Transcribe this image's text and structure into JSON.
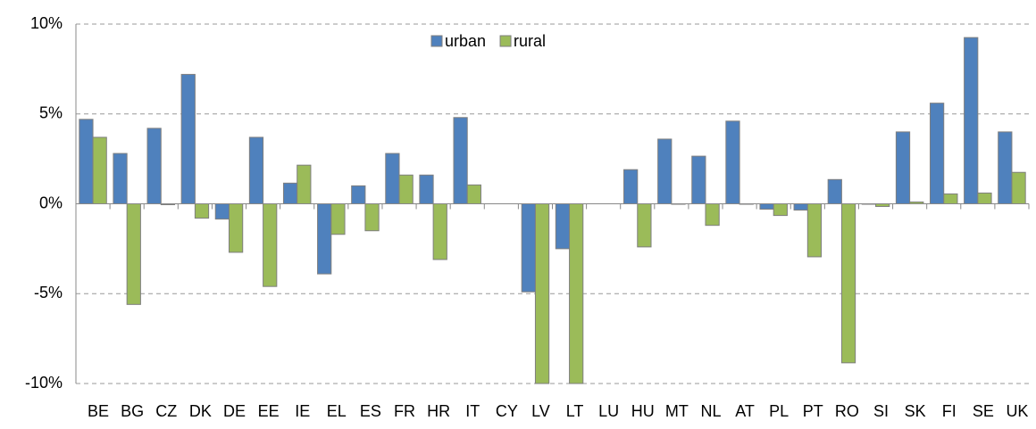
{
  "chart_data": {
    "type": "bar",
    "categories": [
      "BE",
      "BG",
      "CZ",
      "DK",
      "DE",
      "EE",
      "IE",
      "EL",
      "ES",
      "FR",
      "HR",
      "IT",
      "CY",
      "LV",
      "LT",
      "LU",
      "HU",
      "MT",
      "NL",
      "AT",
      "PL",
      "PT",
      "RO",
      "SI",
      "SK",
      "FI",
      "SE",
      "UK"
    ],
    "series": [
      {
        "name": "urban",
        "color": "#4f81bd",
        "values": [
          4.7,
          2.8,
          4.2,
          7.2,
          -0.85,
          3.7,
          1.15,
          -3.9,
          1.0,
          2.8,
          1.6,
          4.8,
          null,
          -4.9,
          -2.5,
          null,
          1.9,
          3.6,
          2.65,
          4.6,
          -0.3,
          -0.35,
          1.35,
          0,
          4.0,
          5.6,
          9.25,
          4.0
        ]
      },
      {
        "name": "rural",
        "color": "#9bbb59",
        "values": [
          3.7,
          -5.6,
          -0.05,
          -0.8,
          -2.7,
          -4.6,
          2.15,
          -1.7,
          -1.5,
          1.6,
          -3.1,
          1.05,
          null,
          -10,
          -10,
          null,
          -2.4,
          0,
          -1.2,
          0,
          -0.65,
          -2.95,
          -8.85,
          -0.15,
          0.1,
          0.55,
          0.6,
          1.75
        ]
      }
    ],
    "ylim": [
      -10,
      10
    ],
    "yticks": [
      {
        "value": -10,
        "label": "-10%"
      },
      {
        "value": -5,
        "label": "-5%"
      },
      {
        "value": 0,
        "label": "0%"
      },
      {
        "value": 5,
        "label": "5%"
      },
      {
        "value": 10,
        "label": "10%"
      }
    ],
    "grid": true,
    "legend": "top"
  }
}
